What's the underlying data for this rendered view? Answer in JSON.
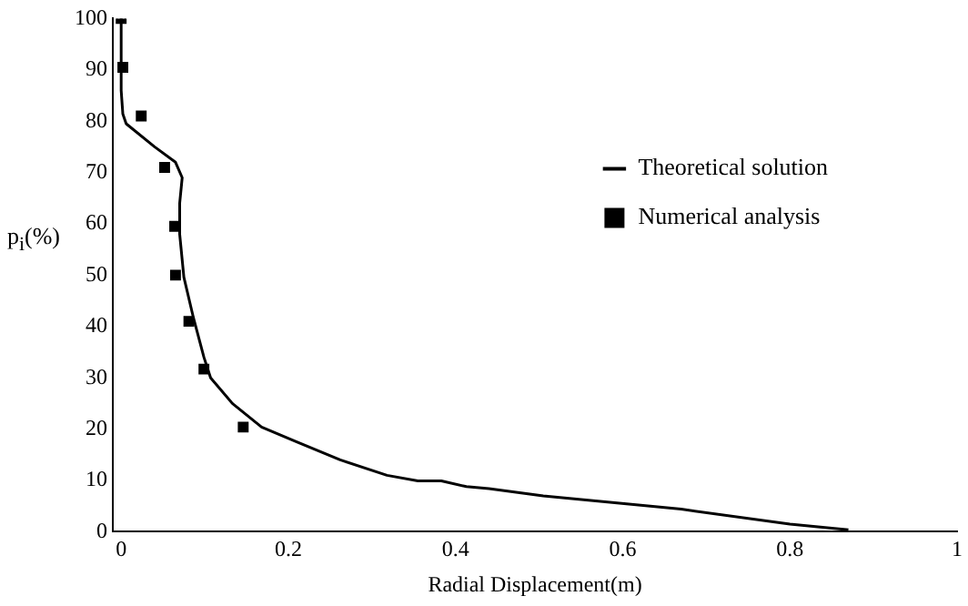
{
  "chart_data": {
    "type": "line",
    "xlabel": "Radial Displacement(m)",
    "ylabel": "p$_{i}$(%)",
    "xlim": [
      -0.01,
      1
    ],
    "xticks": [
      {
        "value": 0,
        "label": "0"
      },
      0.2,
      0.4,
      0.6,
      0.8,
      {
        "value": 1,
        "label": "1"
      }
    ],
    "ylim": [
      0,
      100
    ],
    "yticks": [
      0,
      10,
      20,
      30,
      40,
      50,
      60,
      70,
      80,
      90,
      100
    ],
    "grid": false,
    "legend": "top right",
    "series": [
      {
        "name": "Theoretical solution",
        "color": "#000000",
        "marker": "none",
        "line_style": "solid",
        "x": [
          0,
          0,
          0.002,
          0.006,
          0.04,
          0.065,
          0.073,
          0.07,
          0.07,
          0.075,
          0.086,
          0.099,
          0.107,
          0.133,
          0.168,
          0.21,
          0.262,
          0.318,
          0.355,
          0.383,
          0.413,
          0.44,
          0.505,
          0.67,
          0.8,
          0.87
        ],
        "values": [
          100,
          86,
          81.4,
          79.5,
          75,
          72,
          69,
          64,
          58,
          49.6,
          42,
          34,
          30,
          25,
          20.4,
          17.5,
          14,
          11,
          9.9,
          9.9,
          8.8,
          8.4,
          7,
          4.4,
          1.5,
          0.4
        ]
      },
      {
        "name": "Numerical analysis",
        "type": "scatter",
        "color": "#000000",
        "marker": "square",
        "x": [
          0,
          0.002,
          0.024,
          0.052,
          0.064,
          0.065,
          0.081,
          0.099,
          0.146
        ],
        "values": [
          100,
          90.5,
          81,
          71,
          59.5,
          50,
          41,
          31.7,
          20.4
        ]
      }
    ]
  }
}
